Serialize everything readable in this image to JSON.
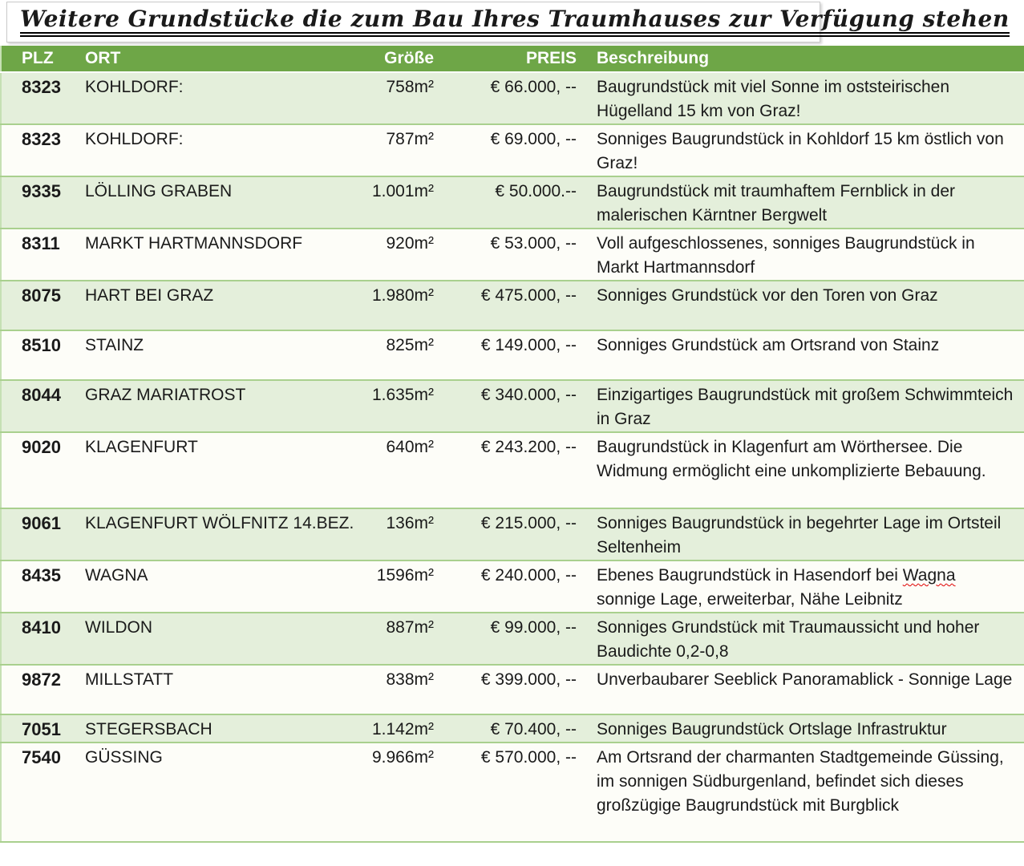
{
  "title": "Weitere Grundstücke die zum Bau Ihres Traumhauses zur Verfügung stehen",
  "colors": {
    "header_bg": "#6ea647",
    "row_green": "#e4efdb",
    "row_white": "#fdfdf8",
    "separator": "#a9d08e",
    "header_text": "#ffffff",
    "spell_red": "#e00000"
  },
  "table": {
    "headers": [
      "PLZ",
      "ORT",
      "Größe",
      "PREIS",
      "Beschreibung"
    ],
    "rows": [
      {
        "plz": "8323",
        "ort": "KOHLDORF:",
        "groesse": "758m²",
        "preis": "€ 66.000, --",
        "beschreibung": "Baugrundstück mit viel Sonne im oststeirischen Hügelland 15 km von Graz!"
      },
      {
        "plz": "8323",
        "ort": "KOHLDORF:",
        "groesse": "787m²",
        "preis": "€ 69.000, --",
        "beschreibung": "Sonniges Baugrundstück in Kohldorf 15 km östlich von Graz!"
      },
      {
        "plz": "9335",
        "ort": "LÖLLING GRABEN",
        "groesse": "1.001m²",
        "preis": "€ 50.000.--",
        "beschreibung": "Baugrundstück mit traumhaftem Fernblick in der malerischen Kärntner Bergwelt"
      },
      {
        "plz": "8311",
        "ort": "MARKT HARTMANNSDORF",
        "groesse": "920m²",
        "preis": "€ 53.000, --",
        "beschreibung": "Voll aufgeschlossenes, sonniges Baugrundstück in Markt Hartmannsdorf"
      },
      {
        "plz": "8075",
        "ort": "HART BEI GRAZ",
        "groesse": "1.980m²",
        "preis": "€ 475.000, --",
        "beschreibung": "Sonniges Grundstück vor den Toren von Graz"
      },
      {
        "plz": "8510",
        "ort": "STAINZ",
        "groesse": "825m²",
        "preis": "€ 149.000, --",
        "beschreibung": "Sonniges Grundstück am Ortsrand von Stainz"
      },
      {
        "plz": "8044",
        "ort": "GRAZ MARIATROST",
        "groesse": "1.635m²",
        "preis": "€ 340.000, --",
        "beschreibung": "Einzigartiges Baugrundstück mit großem Schwimmteich in Graz"
      },
      {
        "plz": "9020",
        "ort": "KLAGENFURT",
        "groesse": "640m²",
        "preis": "€ 243.200, --",
        "beschreibung": "Baugrundstück in Klagenfurt am Wörthersee. Die Widmung ermöglicht eine unkomplizierte Bebauung."
      },
      {
        "plz": "9061",
        "ort": "KLAGENFURT WÖLFNITZ 14.BEZ.",
        "groesse": "136m²",
        "preis": "€ 215.000, --",
        "beschreibung": "Sonniges Baugrundstück in begehrter Lage im Ortsteil Seltenheim"
      },
      {
        "plz": "8435",
        "ort": "WAGNA",
        "groesse": "1596m²",
        "preis": "€ 240.000, --",
        "beschreibung": "Ebenes Baugrundstück in Hasendorf bei Wagna sonnige Lage, erweiterbar, Nähe Leibnitz",
        "spell_mark": "Wagna"
      },
      {
        "plz": "8410",
        "ort": "WILDON",
        "groesse": "887m²",
        "preis": "€ 99.000, --",
        "beschreibung": "Sonniges Grundstück mit Traumaussicht und hoher Baudichte 0,2-0,8"
      },
      {
        "plz": "9872",
        "ort": "MILLSTATT",
        "groesse": "838m²",
        "preis": "€ 399.000, --",
        "beschreibung": "Unverbaubarer Seeblick Panoramablick - Sonnige Lage"
      },
      {
        "plz": "7051",
        "ort": "STEGERSBACH",
        "groesse": "1.142m²",
        "preis": "€ 70.400, --",
        "beschreibung": "Sonniges Baugrundstück Ortslage Infrastruktur"
      },
      {
        "plz": "7540",
        "ort": "GÜSSING",
        "groesse": "9.966m²",
        "preis": "€ 570.000, --",
        "beschreibung": "Am Ortsrand der charmanten Stadtgemeinde Güssing, im sonnigen Südburgenland, befindet sich dieses großzügige Baugrundstück mit Burgblick"
      }
    ]
  }
}
